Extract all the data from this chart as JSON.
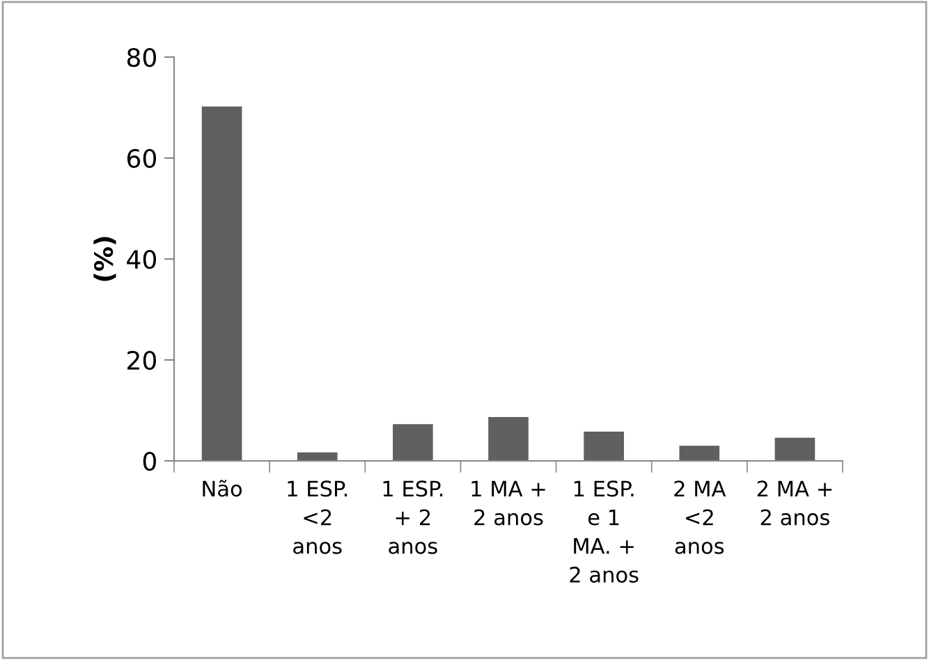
{
  "chart_data": {
    "type": "bar",
    "ylabel": "(%)",
    "categories": [
      "Não",
      "1 ESP.\n<2\nanos",
      "1 ESP.\n+ 2\nanos",
      "1 MA +\n2 anos",
      "1 ESP.\ne 1\nMA. +\n2 anos",
      "2 MA\n<2\nanos",
      "2 MA +\n2 anos"
    ],
    "values": [
      70,
      1.5,
      7.1,
      8.5,
      5.6,
      2.8,
      4.4
    ],
    "color": "#606060",
    "ylim": [
      0,
      80
    ],
    "yticks": [
      0,
      20,
      40,
      60,
      80
    ],
    "grid": false,
    "legend": false
  }
}
